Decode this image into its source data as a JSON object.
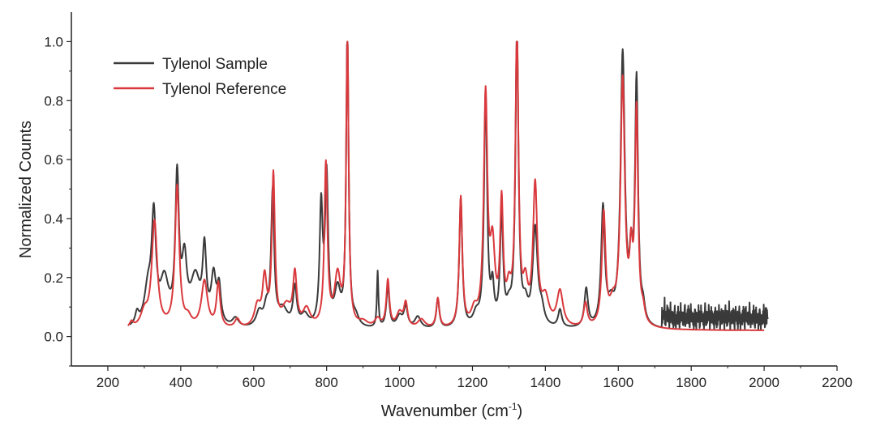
{
  "chart_data": {
    "type": "line",
    "title": "",
    "xlabel": "Wavenumber (cm",
    "xlabel_sup": "-1",
    "xlabel_close": ")",
    "ylabel": "Normalized Counts",
    "xlim": [
      100,
      2200
    ],
    "ylim": [
      -0.1,
      1.1
    ],
    "xticks": [
      200,
      400,
      600,
      800,
      1000,
      1200,
      1400,
      1600,
      1800,
      2000,
      2200
    ],
    "xtick_labels": [
      "200",
      "400",
      "600",
      "800",
      "1000",
      "1200",
      "1400",
      "1600",
      "1800",
      "2000",
      "2200"
    ],
    "yticks": [
      0.0,
      0.2,
      0.4,
      0.6,
      0.8,
      1.0
    ],
    "ytick_labels": [
      "0.0",
      "0.2",
      "0.4",
      "0.6",
      "0.8",
      "1.0"
    ],
    "grid": false,
    "legend_position": "top-left",
    "series": [
      {
        "name": "Tylenol Sample",
        "color": "#3a3a3a",
        "x_range": [
          260,
          2010
        ],
        "baseline": 0.02,
        "noise_region": [
          1720,
          2010
        ],
        "peaks": [
          [
            280,
            0.04,
            6
          ],
          [
            310,
            0.12,
            12
          ],
          [
            326,
            0.35,
            7
          ],
          [
            355,
            0.15,
            14
          ],
          [
            390,
            0.49,
            6
          ],
          [
            410,
            0.2,
            8
          ],
          [
            440,
            0.16,
            16
          ],
          [
            465,
            0.24,
            6
          ],
          [
            490,
            0.16,
            8
          ],
          [
            505,
            0.12,
            6
          ],
          [
            550,
            0.03,
            10
          ],
          [
            615,
            0.05,
            10
          ],
          [
            635,
            0.06,
            8
          ],
          [
            652,
            0.45,
            5
          ],
          [
            680,
            0.06,
            16
          ],
          [
            713,
            0.13,
            6
          ],
          [
            740,
            0.04,
            12
          ],
          [
            785,
            0.4,
            5
          ],
          [
            800,
            0.5,
            5
          ],
          [
            830,
            0.12,
            10
          ],
          [
            857,
            1.0,
            4
          ],
          [
            880,
            0.03,
            10
          ],
          [
            940,
            0.19,
            2.5
          ],
          [
            968,
            0.14,
            5
          ],
          [
            1000,
            0.04,
            10
          ],
          [
            1017,
            0.07,
            6
          ],
          [
            1050,
            0.04,
            10
          ],
          [
            1105,
            0.1,
            5
          ],
          [
            1168,
            0.44,
            5
          ],
          [
            1210,
            0.04,
            10
          ],
          [
            1236,
            0.79,
            5
          ],
          [
            1255,
            0.12,
            5
          ],
          [
            1280,
            0.37,
            5
          ],
          [
            1300,
            0.05,
            8
          ],
          [
            1322,
            1.0,
            5
          ],
          [
            1345,
            0.06,
            8
          ],
          [
            1372,
            0.33,
            8
          ],
          [
            1390,
            0.05,
            8
          ],
          [
            1440,
            0.06,
            6
          ],
          [
            1512,
            0.13,
            6
          ],
          [
            1558,
            0.4,
            6
          ],
          [
            1580,
            0.06,
            10
          ],
          [
            1612,
            0.92,
            7
          ],
          [
            1635,
            0.18,
            5
          ],
          [
            1650,
            0.82,
            5
          ],
          [
            1668,
            0.05,
            6
          ]
        ]
      },
      {
        "name": "Tylenol Reference",
        "color": "#d9393d",
        "x_range": [
          255,
          2000
        ],
        "baseline": 0.02,
        "noise_region": null,
        "peaks": [
          [
            265,
            0.02,
            6
          ],
          [
            300,
            0.05,
            12
          ],
          [
            328,
            0.36,
            9
          ],
          [
            390,
            0.48,
            7
          ],
          [
            420,
            0.03,
            10
          ],
          [
            465,
            0.16,
            10
          ],
          [
            503,
            0.15,
            6
          ],
          [
            555,
            0.03,
            8
          ],
          [
            610,
            0.07,
            10
          ],
          [
            630,
            0.16,
            7
          ],
          [
            654,
            0.51,
            5
          ],
          [
            690,
            0.07,
            16
          ],
          [
            713,
            0.17,
            6
          ],
          [
            745,
            0.06,
            12
          ],
          [
            798,
            0.55,
            5
          ],
          [
            830,
            0.17,
            10
          ],
          [
            857,
            0.99,
            4
          ],
          [
            900,
            0.02,
            16
          ],
          [
            940,
            0.03,
            10
          ],
          [
            968,
            0.16,
            5
          ],
          [
            1000,
            0.05,
            10
          ],
          [
            1017,
            0.08,
            6
          ],
          [
            1060,
            0.03,
            12
          ],
          [
            1105,
            0.1,
            5
          ],
          [
            1168,
            0.44,
            5
          ],
          [
            1205,
            0.05,
            10
          ],
          [
            1236,
            0.77,
            6
          ],
          [
            1255,
            0.25,
            8
          ],
          [
            1280,
            0.4,
            5
          ],
          [
            1300,
            0.1,
            8
          ],
          [
            1322,
            1.0,
            5
          ],
          [
            1345,
            0.12,
            8
          ],
          [
            1372,
            0.47,
            7
          ],
          [
            1400,
            0.09,
            12
          ],
          [
            1440,
            0.12,
            10
          ],
          [
            1510,
            0.08,
            6
          ],
          [
            1560,
            0.38,
            6
          ],
          [
            1585,
            0.06,
            10
          ],
          [
            1612,
            0.83,
            7
          ],
          [
            1635,
            0.2,
            5
          ],
          [
            1650,
            0.72,
            5
          ],
          [
            1668,
            0.04,
            6
          ]
        ]
      }
    ]
  }
}
